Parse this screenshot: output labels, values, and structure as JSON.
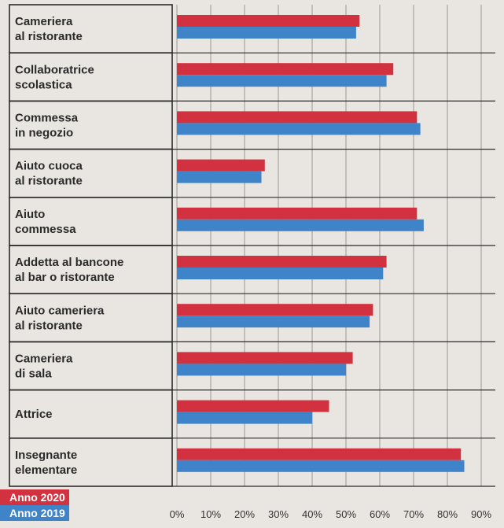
{
  "colors": {
    "series_2020": "#d2323f",
    "series_2019": "#3f84c8",
    "background": "#e9e6e1",
    "grid": "#9a9893"
  },
  "chart_data": {
    "type": "bar",
    "orientation": "horizontal",
    "categories": [
      [
        "Cameriera",
        "al ristorante"
      ],
      [
        "Collaboratrice",
        "scolastica"
      ],
      [
        "Commessa",
        "in negozio"
      ],
      [
        "Aiuto cuoca",
        "al ristorante"
      ],
      [
        "Aiuto",
        "commessa"
      ],
      [
        "Addetta al bancone",
        "al bar o ristorante"
      ],
      [
        "Aiuto cameriera",
        "al ristorante"
      ],
      [
        "Cameriera",
        "di sala"
      ],
      [
        "Attrice"
      ],
      [
        "Insegnante",
        "elementare"
      ]
    ],
    "series": [
      {
        "name": "Anno 2020",
        "color": "#d2323f",
        "values": [
          54,
          64,
          71,
          26,
          71,
          62,
          58,
          52,
          45,
          84
        ]
      },
      {
        "name": "Anno 2019",
        "color": "#3f84c8",
        "values": [
          53,
          62,
          72,
          25,
          73,
          61,
          57,
          50,
          40,
          85
        ]
      }
    ],
    "xlim": [
      0,
      90
    ],
    "x_ticks": [
      "0%",
      "10%",
      "20%",
      "30%",
      "40%",
      "50%",
      "60%",
      "70%",
      "80%",
      "90%"
    ],
    "grid": true,
    "legend_position": "bottom-left"
  }
}
